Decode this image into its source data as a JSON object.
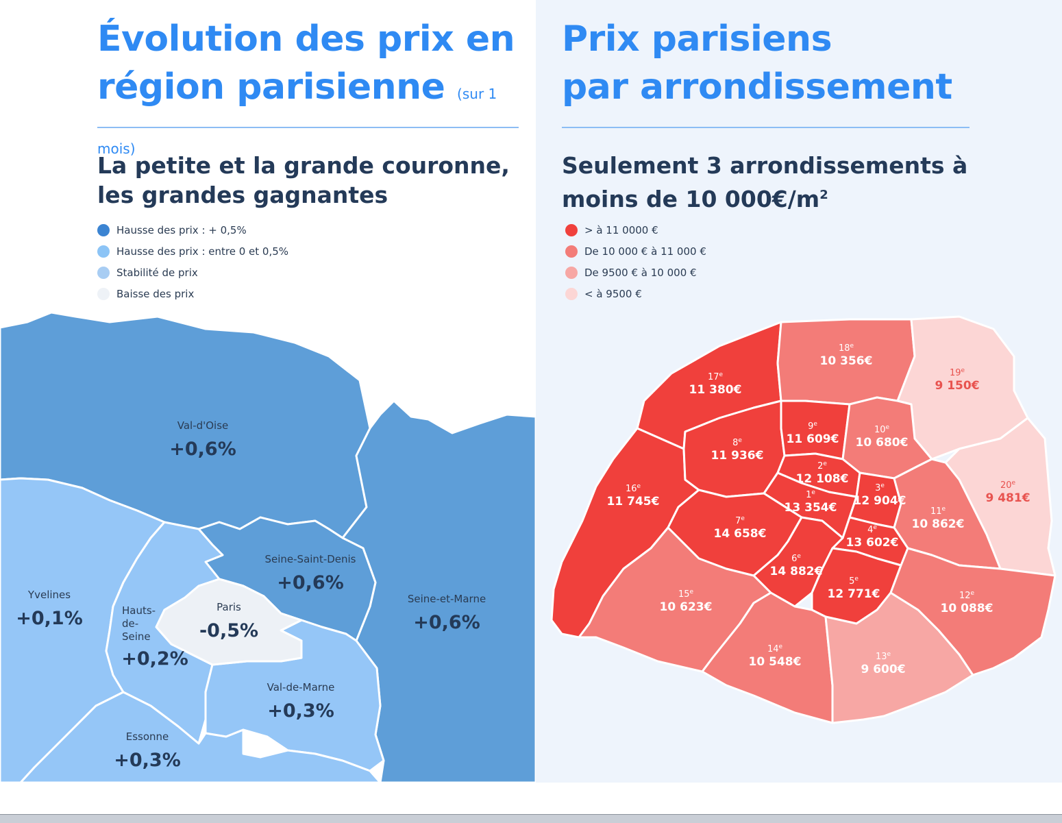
{
  "left": {
    "title_line1": "Évolution des prix en",
    "title_line2": "région parisienne",
    "title_note": "(sur 1 mois)",
    "subtitle_line1": "La petite et la grande couronne,",
    "subtitle_line2": "les grandes gagnantes",
    "legend": [
      {
        "label": "Hausse des prix : + 0,5%",
        "color": "#3b84d2"
      },
      {
        "label": "Hausse des prix : entre 0 et 0,5%",
        "color": "#8cc4f6"
      },
      {
        "label": "Stabilité de prix",
        "color": "#a8cdf3"
      },
      {
        "label": "Baisse des prix",
        "color": "#eef2f7"
      }
    ],
    "regions": [
      {
        "name": "Val-d'Oise",
        "value": "+0,6%",
        "color": "#5e9ed8"
      },
      {
        "name": "Seine-et-Marne",
        "value": "+0,6%",
        "color": "#5e9ed8"
      },
      {
        "name": "Seine-Saint-Denis",
        "value": "+0,6%",
        "color": "#5e9ed8"
      },
      {
        "name": "Yvelines",
        "value": "+0,1%",
        "color": "#95c6f7"
      },
      {
        "name": "Hauts-de-Seine",
        "value": "+0,2%",
        "color": "#95c6f7"
      },
      {
        "name": "Paris",
        "value": "-0,5%",
        "color": "#edf1f6"
      },
      {
        "name": "Val-de-Marne",
        "value": "+0,3%",
        "color": "#95c6f7"
      },
      {
        "name": "Essonne",
        "value": "+0,3%",
        "color": "#95c6f7"
      }
    ]
  },
  "right": {
    "title_line1": "Prix parisiens",
    "title_line2": "par arrondissement",
    "subtitle_line1": "Seulement 3 arrondissements à",
    "subtitle_line2": "moins de 10 000€/m",
    "subtitle_sup": "2",
    "legend": [
      {
        "label": "> à 11 0000 €",
        "color": "#f0403c"
      },
      {
        "label": "De 10 000 € à 11 000 €",
        "color": "#f37c78"
      },
      {
        "label": "De 9500 € à 10 000 €",
        "color": "#f7a7a4"
      },
      {
        "label": "< à 9500 €",
        "color": "#fcd6d5"
      }
    ],
    "arrondissements": [
      {
        "num": "1",
        "sup": "e",
        "price": "13 354€",
        "color": "#f0403c"
      },
      {
        "num": "2",
        "sup": "e",
        "price": "12 108€",
        "color": "#f0403c"
      },
      {
        "num": "3",
        "sup": "e",
        "price": "12 904€",
        "color": "#f0403c"
      },
      {
        "num": "4",
        "sup": "e",
        "price": "13 602€",
        "color": "#f0403c"
      },
      {
        "num": "5",
        "sup": "e",
        "price": "12 771€",
        "color": "#f0403c"
      },
      {
        "num": "6",
        "sup": "e",
        "price": "14 882€",
        "color": "#f0403c"
      },
      {
        "num": "7",
        "sup": "e",
        "price": "14 658€",
        "color": "#f0403c"
      },
      {
        "num": "8",
        "sup": "e",
        "price": "11 936€",
        "color": "#f0403c"
      },
      {
        "num": "9",
        "sup": "e",
        "price": "11 609€",
        "color": "#f0403c"
      },
      {
        "num": "10",
        "sup": "e",
        "price": "10 680€",
        "color": "#f37c78"
      },
      {
        "num": "11",
        "sup": "e",
        "price": "10 862€",
        "color": "#f37c78"
      },
      {
        "num": "12",
        "sup": "e",
        "price": "10 088€",
        "color": "#f37c78"
      },
      {
        "num": "13",
        "sup": "e",
        "price": "9 600€",
        "color": "#f7a7a4"
      },
      {
        "num": "14",
        "sup": "e",
        "price": "10 548€",
        "color": "#f37c78"
      },
      {
        "num": "15",
        "sup": "e",
        "price": "10 623€",
        "color": "#f37c78"
      },
      {
        "num": "16",
        "sup": "e",
        "price": "11 745€",
        "color": "#f0403c"
      },
      {
        "num": "17",
        "sup": "e",
        "price": "11 380€",
        "color": "#f0403c"
      },
      {
        "num": "18",
        "sup": "e",
        "price": "10 356€",
        "color": "#f37c78"
      },
      {
        "num": "19",
        "sup": "e",
        "price": "9 150€",
        "color": "#fcd6d5"
      },
      {
        "num": "20",
        "sup": "e",
        "price": "9 481€",
        "color": "#fcd6d5"
      }
    ]
  }
}
